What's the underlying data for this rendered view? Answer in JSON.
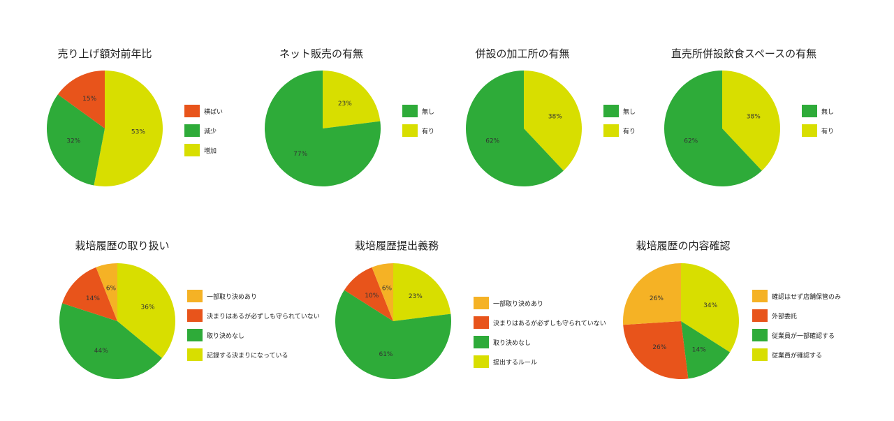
{
  "colors": {
    "orange_red": "#E8541B",
    "green": "#2EAB39",
    "yellow_green": "#D8DE00",
    "amber": "#F5B225"
  },
  "chart_data": [
    {
      "type": "pie",
      "title": "売り上げ額対前年比",
      "slices": [
        {
          "label": "横ばい",
          "value": 15,
          "color": "#E8541B"
        },
        {
          "label": "減少",
          "value": 32,
          "color": "#2EAB39"
        },
        {
          "label": "増加",
          "value": 53,
          "color": "#D8DE00"
        }
      ],
      "draw_order": [
        2,
        1,
        0
      ],
      "legend": "right"
    },
    {
      "type": "pie",
      "title": "ネット販売の有無",
      "slices": [
        {
          "label": "無し",
          "value": 77,
          "color": "#2EAB39"
        },
        {
          "label": "有り",
          "value": 23,
          "color": "#D8DE00"
        }
      ],
      "draw_order": [
        1,
        0
      ],
      "legend": "right"
    },
    {
      "type": "pie",
      "title": "併設の加工所の有無",
      "slices": [
        {
          "label": "無し",
          "value": 62,
          "color": "#2EAB39"
        },
        {
          "label": "有り",
          "value": 38,
          "color": "#D8DE00"
        }
      ],
      "draw_order": [
        1,
        0
      ],
      "legend": "right"
    },
    {
      "type": "pie",
      "title": "直売所併設飲食スペースの有無",
      "slices": [
        {
          "label": "無し",
          "value": 62,
          "color": "#2EAB39"
        },
        {
          "label": "有り",
          "value": 38,
          "color": "#D8DE00"
        }
      ],
      "draw_order": [
        1,
        0
      ],
      "legend": "right"
    },
    {
      "type": "pie",
      "title": "栽培履歴の取り扱い",
      "slices": [
        {
          "label": "一部取り決めあり",
          "value": 6,
          "color": "#F5B225"
        },
        {
          "label": "決まりはあるが必ずしも守られていない",
          "value": 14,
          "color": "#E8541B"
        },
        {
          "label": "取り決めなし",
          "value": 44,
          "color": "#2EAB39"
        },
        {
          "label": "記録する決まりになっている",
          "value": 36,
          "color": "#D8DE00"
        }
      ],
      "draw_order": [
        3,
        2,
        1,
        0
      ],
      "legend": "right"
    },
    {
      "type": "pie",
      "title": "栽培履歴提出義務",
      "slices": [
        {
          "label": "一部取り決めあり",
          "value": 6,
          "color": "#F5B225"
        },
        {
          "label": "決まりはあるが必ずしも守られていない",
          "value": 10,
          "color": "#E8541B"
        },
        {
          "label": "取り決めなし",
          "value": 61,
          "color": "#2EAB39"
        },
        {
          "label": "提出するルール",
          "value": 23,
          "color": "#D8DE00"
        }
      ],
      "draw_order": [
        3,
        2,
        1,
        0
      ],
      "legend": "right"
    },
    {
      "type": "pie",
      "title": "栽培履歴の内容確認",
      "slices": [
        {
          "label": "確認はせず店舗保管のみ",
          "value": 26,
          "color": "#F5B225"
        },
        {
          "label": "外部委託",
          "value": 26,
          "color": "#E8541B"
        },
        {
          "label": "従業員が一部確認する",
          "value": 14,
          "color": "#2EAB39"
        },
        {
          "label": "従業員が確認する",
          "value": 34,
          "color": "#D8DE00"
        }
      ],
      "draw_order": [
        3,
        2,
        1,
        0
      ],
      "legend": "right"
    }
  ]
}
